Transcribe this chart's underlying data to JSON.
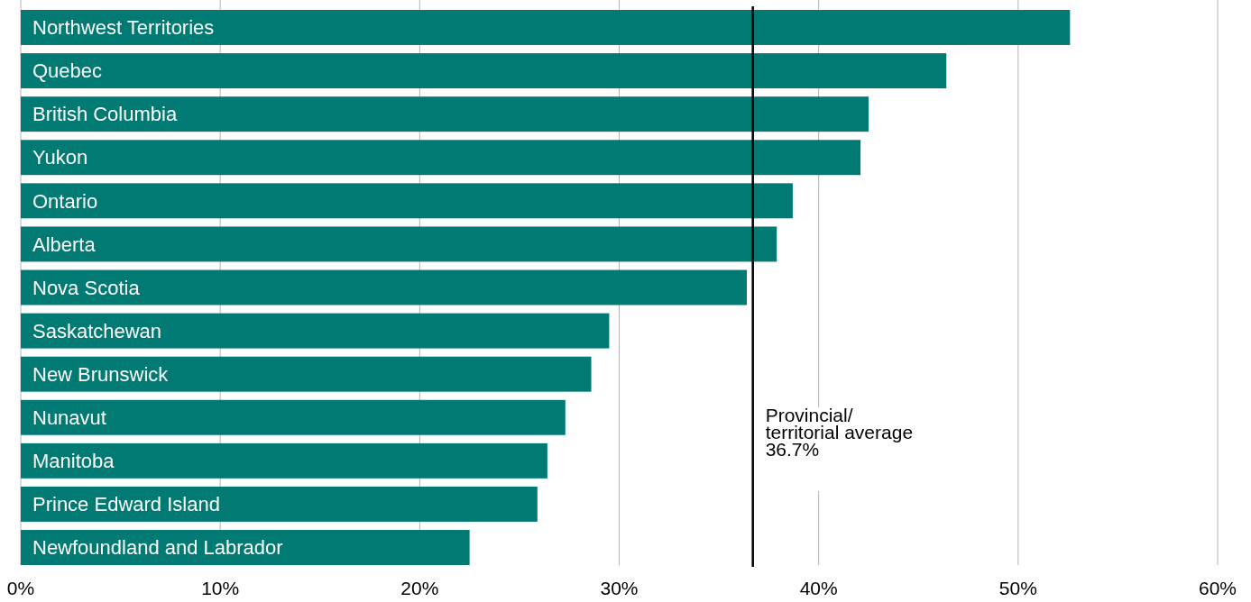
{
  "chart_data": {
    "type": "bar",
    "orientation": "horizontal",
    "categories": [
      "Northwest Territories",
      "Quebec",
      "British Columbia",
      "Yukon",
      "Ontario",
      "Alberta",
      "Nova Scotia",
      "Saskatchewan",
      "New Brunswick",
      "Nunavut",
      "Manitoba",
      "Prince Edward Island",
      "Newfoundland and Labrador"
    ],
    "values": [
      52.6,
      46.4,
      42.5,
      42.1,
      38.7,
      37.9,
      36.4,
      29.5,
      28.6,
      27.3,
      26.4,
      25.9,
      22.5
    ],
    "color": "#007a73",
    "xlim": [
      0,
      60
    ],
    "xticks": [
      {
        "value": 0,
        "label": "0%"
      },
      {
        "value": 10,
        "label": "10%"
      },
      {
        "value": 20,
        "label": "20%"
      },
      {
        "value": 30,
        "label": "30%"
      },
      {
        "value": 40,
        "label": "40%"
      },
      {
        "value": 50,
        "label": "50%"
      },
      {
        "value": 60,
        "label": "60%"
      }
    ],
    "grid": "x",
    "ref_lines": [
      {
        "axis": "x",
        "value": 36.7,
        "label": "Provincial/\nterritorial average\n36.7%",
        "color": "#000000"
      }
    ]
  }
}
